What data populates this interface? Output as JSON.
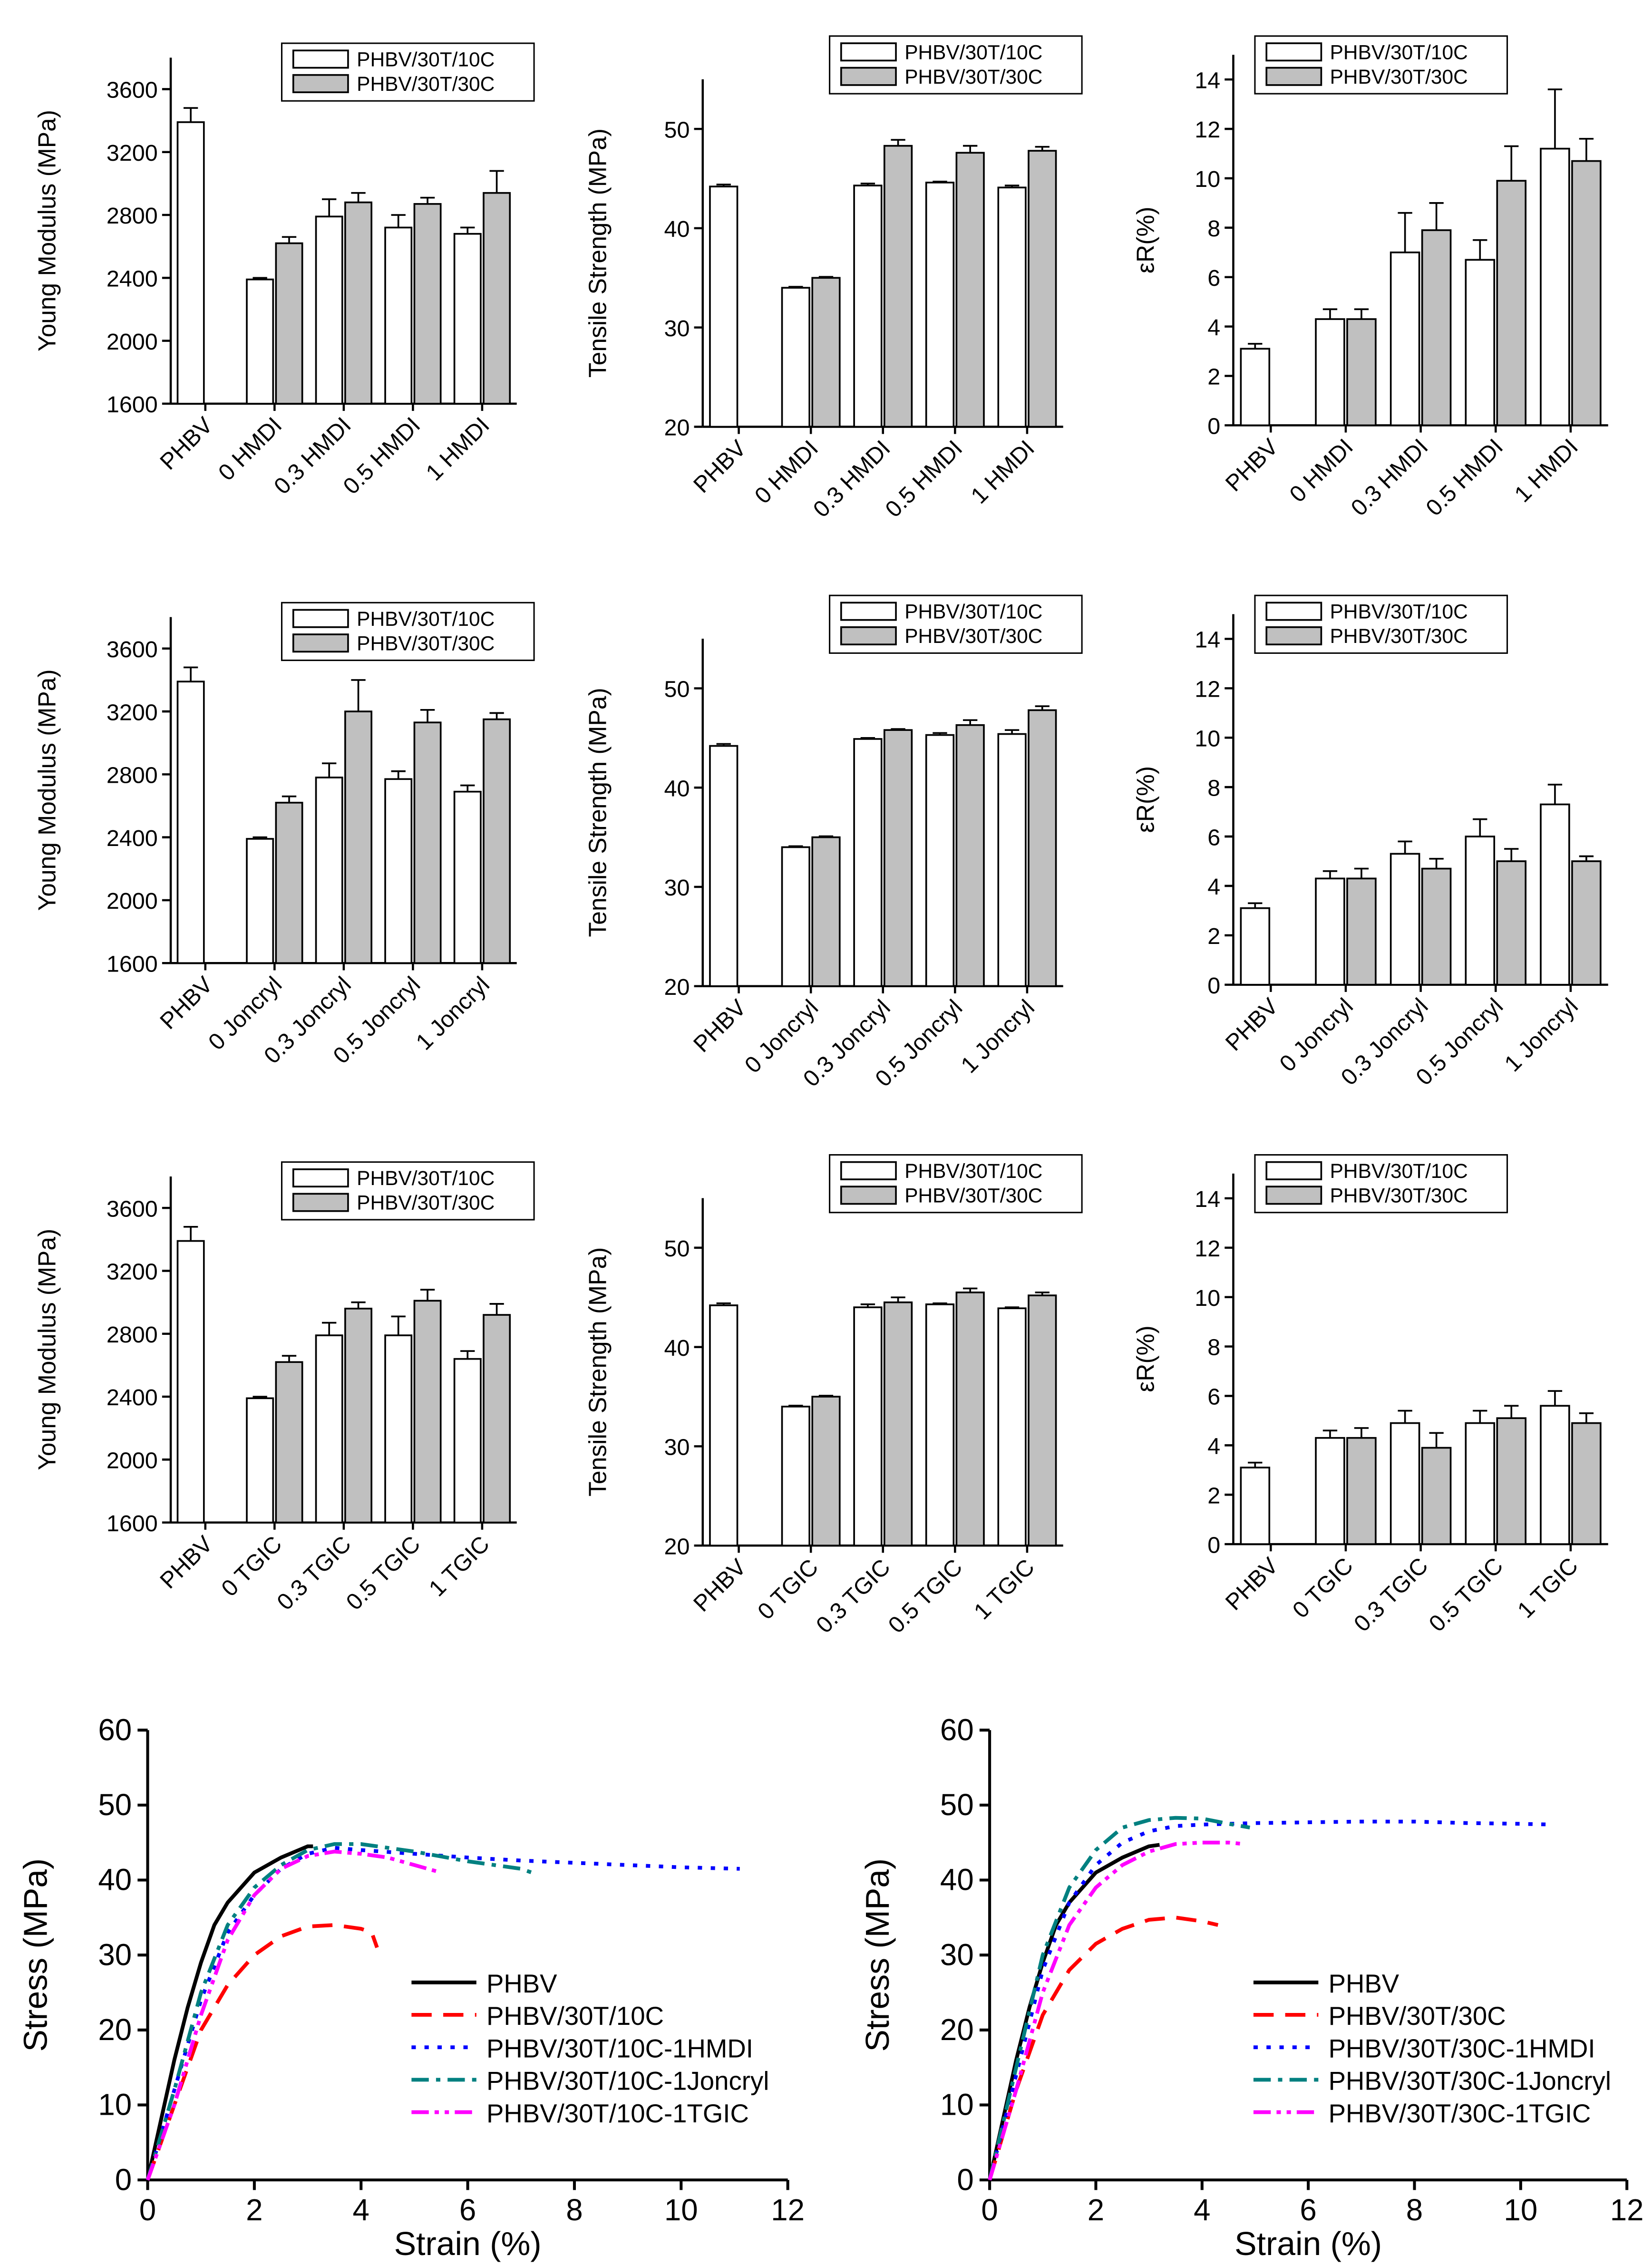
{
  "chart_data": [
    {
      "type": "bar",
      "y_label": "Young Modulus (MPa)",
      "categories": [
        "PHBV",
        "0 HMDI",
        "0.3 HMDI",
        "0.5 HMDI",
        "1 HMDI"
      ],
      "ylim": [
        1600,
        3800
      ],
      "yticks": [
        1600,
        2000,
        2400,
        2800,
        3200,
        3600
      ],
      "legend": "upper right",
      "series": [
        {
          "name": "PHBV/30T/10C",
          "color": "#ffffff",
          "values": [
            3390,
            2390,
            2790,
            2720,
            2680
          ],
          "errors": [
            90,
            10,
            110,
            80,
            40
          ]
        },
        {
          "name": "PHBV/30T/30C",
          "color": "#c0c0c0",
          "values": [
            null,
            2620,
            2880,
            2870,
            2940
          ],
          "errors": [
            null,
            40,
            60,
            40,
            140
          ]
        }
      ]
    },
    {
      "type": "bar",
      "y_label": "Tensile Strength (MPa)",
      "categories": [
        "PHBV",
        "0 HMDI",
        "0.3 HMDI",
        "0.5 HMDI",
        "1 HMDI"
      ],
      "ylim": [
        20,
        55
      ],
      "yticks": [
        20,
        30,
        40,
        50
      ],
      "legend": "upper right",
      "series": [
        {
          "name": "PHBV/30T/10C",
          "color": "#ffffff",
          "values": [
            44.2,
            34,
            44.3,
            44.6,
            44.1
          ],
          "errors": [
            0.2,
            0.1,
            0.2,
            0.1,
            0.2
          ]
        },
        {
          "name": "PHBV/30T/30C",
          "color": "#c0c0c0",
          "values": [
            null,
            35,
            48.3,
            47.6,
            47.8
          ],
          "errors": [
            null,
            0.1,
            0.6,
            0.7,
            0.4
          ]
        }
      ]
    },
    {
      "type": "bar",
      "y_label": "εR(%)",
      "categories": [
        "PHBV",
        "0 HMDI",
        "0.3 HMDI",
        "0.5 HMDI",
        "1 HMDI"
      ],
      "ylim": [
        0,
        15
      ],
      "yticks": [
        0,
        2,
        4,
        6,
        8,
        10,
        12,
        14
      ],
      "legend": "upper right",
      "series": [
        {
          "name": "PHBV/30T/10C",
          "color": "#ffffff",
          "values": [
            3.1,
            4.3,
            7.0,
            6.7,
            11.2
          ],
          "errors": [
            0.2,
            0.4,
            1.6,
            0.8,
            2.4
          ]
        },
        {
          "name": "PHBV/30T/30C",
          "color": "#c0c0c0",
          "values": [
            null,
            4.3,
            7.9,
            9.9,
            10.7
          ],
          "errors": [
            null,
            0.4,
            1.1,
            1.4,
            0.9
          ]
        }
      ]
    },
    {
      "type": "bar",
      "y_label": "Young Modulus (MPa)",
      "categories": [
        "PHBV",
        "0 Joncryl",
        "0.3 Joncryl",
        "0.5 Joncryl",
        "1 Joncryl"
      ],
      "ylim": [
        1600,
        3800
      ],
      "yticks": [
        1600,
        2000,
        2400,
        2800,
        3200,
        3600
      ],
      "legend": "upper right",
      "series": [
        {
          "name": "PHBV/30T/10C",
          "color": "#ffffff",
          "values": [
            3390,
            2390,
            2780,
            2770,
            2690
          ],
          "errors": [
            90,
            10,
            90,
            50,
            40
          ]
        },
        {
          "name": "PHBV/30T/30C",
          "color": "#c0c0c0",
          "values": [
            null,
            2620,
            3200,
            3130,
            3150
          ],
          "errors": [
            null,
            40,
            200,
            80,
            40
          ]
        }
      ]
    },
    {
      "type": "bar",
      "y_label": "Tensile Strength (MPa)",
      "categories": [
        "PHBV",
        "0 Joncryl",
        "0.3 Joncryl",
        "0.5 Joncryl",
        "1 Joncryl"
      ],
      "ylim": [
        20,
        55
      ],
      "yticks": [
        20,
        30,
        40,
        50
      ],
      "legend": "upper right",
      "series": [
        {
          "name": "PHBV/30T/10C",
          "color": "#ffffff",
          "values": [
            44.2,
            34,
            44.9,
            45.3,
            45.4
          ],
          "errors": [
            0.2,
            0.1,
            0.1,
            0.2,
            0.4
          ]
        },
        {
          "name": "PHBV/30T/30C",
          "color": "#c0c0c0",
          "values": [
            null,
            35,
            45.8,
            46.3,
            47.8
          ],
          "errors": [
            null,
            0.1,
            0.1,
            0.5,
            0.4
          ]
        }
      ]
    },
    {
      "type": "bar",
      "y_label": "εR(%)",
      "categories": [
        "PHBV",
        "0 Joncryl",
        "0.3 Joncryl",
        "0.5 Joncryl",
        "1 Joncryl"
      ],
      "ylim": [
        0,
        15
      ],
      "yticks": [
        0,
        2,
        4,
        6,
        8,
        10,
        12,
        14
      ],
      "legend": "upper right",
      "series": [
        {
          "name": "PHBV/30T/10C",
          "color": "#ffffff",
          "values": [
            3.1,
            4.3,
            5.3,
            6.0,
            7.3
          ],
          "errors": [
            0.2,
            0.3,
            0.5,
            0.7,
            0.8
          ]
        },
        {
          "name": "PHBV/30T/30C",
          "color": "#c0c0c0",
          "values": [
            null,
            4.3,
            4.7,
            5.0,
            5.0
          ],
          "errors": [
            null,
            0.4,
            0.4,
            0.5,
            0.2
          ]
        }
      ]
    },
    {
      "type": "bar",
      "y_label": "Young Modulus (MPa)",
      "categories": [
        "PHBV",
        "0 TGIC",
        "0.3 TGIC",
        "0.5 TGIC",
        "1 TGIC"
      ],
      "ylim": [
        1600,
        3800
      ],
      "yticks": [
        1600,
        2000,
        2400,
        2800,
        3200,
        3600
      ],
      "legend": "upper right",
      "series": [
        {
          "name": "PHBV/30T/10C",
          "color": "#ffffff",
          "values": [
            3390,
            2390,
            2790,
            2790,
            2640
          ],
          "errors": [
            90,
            10,
            80,
            120,
            50
          ]
        },
        {
          "name": "PHBV/30T/30C",
          "color": "#c0c0c0",
          "values": [
            null,
            2620,
            2960,
            3010,
            2920
          ],
          "errors": [
            null,
            40,
            40,
            70,
            70
          ]
        }
      ]
    },
    {
      "type": "bar",
      "y_label": "Tensile Strength (MPa)",
      "categories": [
        "PHBV",
        "0 TGIC",
        "0.3 TGIC",
        "0.5 TGIC",
        "1 TGIC"
      ],
      "ylim": [
        20,
        55
      ],
      "yticks": [
        20,
        30,
        40,
        50
      ],
      "legend": "upper right",
      "series": [
        {
          "name": "PHBV/30T/10C",
          "color": "#ffffff",
          "values": [
            44.2,
            34,
            44.0,
            44.3,
            43.9
          ],
          "errors": [
            0.2,
            0.1,
            0.3,
            0.1,
            0.1
          ]
        },
        {
          "name": "PHBV/30T/30C",
          "color": "#c0c0c0",
          "values": [
            null,
            35,
            44.5,
            45.5,
            45.2
          ],
          "errors": [
            null,
            0.1,
            0.5,
            0.4,
            0.3
          ]
        }
      ]
    },
    {
      "type": "bar",
      "y_label": "εR(%)",
      "categories": [
        "PHBV",
        "0 TGIC",
        "0.3 TGIC",
        "0.5 TGIC",
        "1 TGIC"
      ],
      "ylim": [
        0,
        15
      ],
      "yticks": [
        0,
        2,
        4,
        6,
        8,
        10,
        12,
        14
      ],
      "legend": "upper right",
      "series": [
        {
          "name": "PHBV/30T/10C",
          "color": "#ffffff",
          "values": [
            3.1,
            4.3,
            4.9,
            4.9,
            5.6
          ],
          "errors": [
            0.2,
            0.3,
            0.5,
            0.5,
            0.6
          ]
        },
        {
          "name": "PHBV/30T/30C",
          "color": "#c0c0c0",
          "values": [
            null,
            4.3,
            3.9,
            5.1,
            4.9
          ],
          "errors": [
            null,
            0.4,
            0.6,
            0.5,
            0.4
          ]
        }
      ]
    },
    {
      "type": "line",
      "x_label": "Strain (%)",
      "y_label": "Stress (MPa)",
      "xlim": [
        0,
        12
      ],
      "xticks": [
        0,
        2,
        4,
        6,
        8,
        10,
        12
      ],
      "ylim": [
        0,
        60
      ],
      "yticks": [
        0,
        10,
        20,
        30,
        40,
        50,
        60
      ],
      "legend": "center right",
      "series": [
        {
          "name": "PHBV",
          "color": "#000000",
          "style": "solid",
          "x": [
            0,
            0.25,
            0.5,
            0.75,
            1,
            1.25,
            1.5,
            2,
            2.5,
            3,
            3.1
          ],
          "y": [
            0,
            8,
            16,
            23,
            29,
            34,
            37,
            41,
            43,
            44.5,
            44.5
          ]
        },
        {
          "name": "PHBV/30T/10C",
          "color": "#ff0000",
          "style": "dashed",
          "x": [
            0,
            0.5,
            1,
            1.5,
            2,
            2.5,
            3,
            3.5,
            4,
            4.2,
            4.3
          ],
          "y": [
            0,
            10,
            20,
            26,
            30,
            32.5,
            33.8,
            34,
            33.5,
            33,
            31
          ]
        },
        {
          "name": "PHBV/30T/10C-1HMDI",
          "color": "#0000ff",
          "style": "dotted",
          "x": [
            0,
            0.5,
            1,
            1.5,
            2,
            2.5,
            3,
            3.5,
            4,
            5,
            6,
            7,
            8,
            9,
            10,
            11.1
          ],
          "y": [
            0,
            12,
            24,
            33,
            38,
            41.5,
            43.5,
            44.3,
            44,
            43.5,
            43,
            42.6,
            42.3,
            42,
            41.7,
            41.5
          ]
        },
        {
          "name": "PHBV/30T/10C-1Joncryl",
          "color": "#008080",
          "style": "dashdot",
          "x": [
            0,
            0.5,
            1,
            1.5,
            2,
            2.5,
            3,
            3.5,
            4,
            5,
            6,
            7,
            7.2
          ],
          "y": [
            0,
            12,
            25,
            34,
            39,
            42,
            44,
            44.8,
            44.8,
            43.8,
            42.5,
            41.5,
            41
          ]
        },
        {
          "name": "PHBV/30T/10C-1TGIC",
          "color": "#ff00ff",
          "style": "dashdotdot",
          "x": [
            0,
            0.5,
            1,
            1.5,
            2,
            2.5,
            3,
            3.5,
            4,
            4.5,
            5,
            5.5
          ],
          "y": [
            0,
            10,
            22,
            32,
            38,
            41.5,
            43.2,
            43.8,
            43.5,
            43,
            42,
            41
          ]
        }
      ]
    },
    {
      "type": "line",
      "x_label": "Strain (%)",
      "y_label": "Stress (MPa)",
      "xlim": [
        0,
        12
      ],
      "xticks": [
        0,
        2,
        4,
        6,
        8,
        10,
        12
      ],
      "ylim": [
        0,
        60
      ],
      "yticks": [
        0,
        10,
        20,
        30,
        40,
        50,
        60
      ],
      "legend": "center right",
      "series": [
        {
          "name": "PHBV",
          "color": "#000000",
          "style": "solid",
          "x": [
            0,
            0.25,
            0.5,
            0.75,
            1,
            1.25,
            1.5,
            2,
            2.5,
            3,
            3.2
          ],
          "y": [
            0,
            8,
            16,
            23,
            29,
            34,
            37,
            41,
            43,
            44.5,
            44.7
          ]
        },
        {
          "name": "PHBV/30T/30C",
          "color": "#ff0000",
          "style": "dashed",
          "x": [
            0,
            0.5,
            1,
            1.5,
            2,
            2.5,
            3,
            3.5,
            4,
            4.3
          ],
          "y": [
            0,
            12,
            22,
            28,
            31.5,
            33.5,
            34.7,
            35,
            34.5,
            34
          ]
        },
        {
          "name": "PHBV/30T/30C-1HMDI",
          "color": "#0000ff",
          "style": "dotted",
          "x": [
            0,
            0.5,
            1,
            1.5,
            2,
            2.5,
            3,
            3.5,
            4,
            5,
            6,
            7,
            8,
            9,
            10,
            10.6
          ],
          "y": [
            0,
            14,
            28,
            37,
            42,
            45,
            46.5,
            47.2,
            47.4,
            47.6,
            47.7,
            47.8,
            47.8,
            47.6,
            47.5,
            47.4
          ]
        },
        {
          "name": "PHBV/30T/30C-1Joncryl",
          "color": "#008080",
          "style": "dashdot",
          "x": [
            0,
            0.5,
            1,
            1.5,
            2,
            2.5,
            3,
            3.5,
            4,
            4.5,
            4.9
          ],
          "y": [
            0,
            15,
            30,
            39,
            44,
            47,
            48,
            48.3,
            48.2,
            47.5,
            47
          ]
        },
        {
          "name": "PHBV/30T/30C-1TGIC",
          "color": "#ff00ff",
          "style": "dashdotdot",
          "x": [
            0,
            0.5,
            1,
            1.5,
            2,
            2.5,
            3,
            3.5,
            4,
            4.5,
            4.8
          ],
          "y": [
            0,
            12,
            25,
            34,
            39,
            42,
            43.8,
            44.8,
            45,
            45,
            44.8
          ]
        }
      ]
    }
  ]
}
